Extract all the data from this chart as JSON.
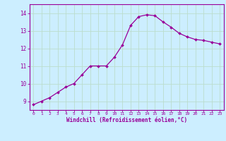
{
  "x": [
    0,
    1,
    2,
    3,
    4,
    5,
    6,
    7,
    8,
    9,
    10,
    11,
    12,
    13,
    14,
    15,
    16,
    17,
    18,
    19,
    20,
    21,
    22,
    23
  ],
  "y": [
    8.8,
    9.0,
    9.2,
    9.5,
    9.8,
    10.0,
    10.5,
    11.0,
    11.0,
    11.0,
    11.5,
    12.2,
    13.3,
    13.8,
    13.9,
    13.85,
    13.5,
    13.2,
    12.85,
    12.65,
    12.5,
    12.45,
    12.35,
    12.25
  ],
  "line_color": "#990099",
  "marker_color": "#990099",
  "bg_color": "#cceeff",
  "grid_color": "#aaddcc",
  "xlabel": "Windchill (Refroidissement éolien,°C)",
  "xlabel_color": "#990099",
  "tick_color": "#990099",
  "spine_color": "#990099",
  "ylim": [
    8.5,
    14.5
  ],
  "xlim": [
    -0.5,
    23.5
  ],
  "yticks": [
    9,
    10,
    11,
    12,
    13,
    14
  ],
  "xtick_labels": [
    "0",
    "1",
    "2",
    "3",
    "4",
    "5",
    "6",
    "7",
    "8",
    "9",
    "10",
    "11",
    "12",
    "13",
    "14",
    "15",
    "16",
    "17",
    "18",
    "19",
    "20",
    "21",
    "22",
    "23"
  ],
  "figwidth": 3.2,
  "figheight": 2.0,
  "dpi": 100
}
